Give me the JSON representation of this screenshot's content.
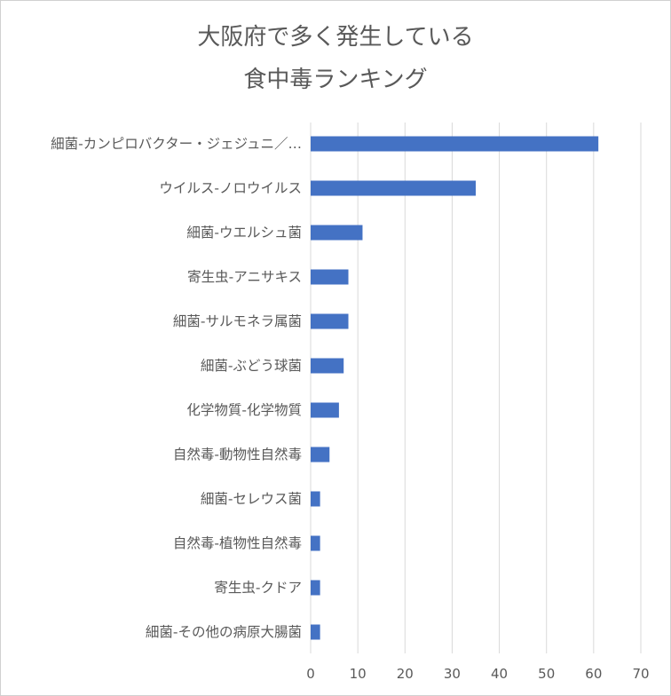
{
  "chart_data": {
    "type": "bar",
    "orientation": "horizontal",
    "title_lines": [
      "大阪府で多く発生している",
      "食中毒ランキング"
    ],
    "categories": [
      "細菌-カンピロバクター・ジェジュニ／…",
      "ウイルス-ノロウイルス",
      "細菌-ウエルシュ菌",
      "寄生虫-アニサキス",
      "細菌-サルモネラ属菌",
      "細菌-ぶどう球菌",
      "化学物質-化学物質",
      "自然毒-動物性自然毒",
      "細菌-セレウス菌",
      "自然毒-植物性自然毒",
      "寄生虫-クドア",
      "細菌-その他の病原大腸菌"
    ],
    "values": [
      61,
      35,
      11,
      8,
      8,
      7,
      6,
      4,
      2,
      2,
      2,
      2
    ],
    "xlim": [
      0,
      70
    ],
    "xticks": [
      "0",
      "10",
      "20",
      "30",
      "40",
      "50",
      "60",
      "70"
    ],
    "grid": true,
    "legend": "none",
    "colors": {
      "bar": "#4472C4",
      "grid": "#d9d9d9",
      "text": "#595959"
    }
  }
}
